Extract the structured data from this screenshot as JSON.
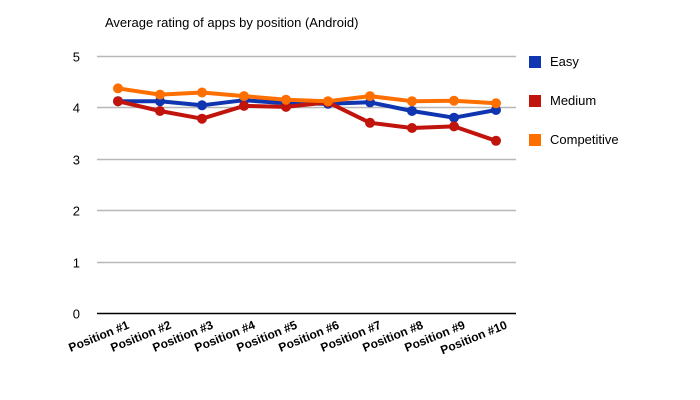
{
  "chart_data": {
    "type": "line",
    "title": "Average rating of apps by position (Android)",
    "xlabel": "",
    "ylabel": "",
    "ylim": [
      0,
      5
    ],
    "yticks": [
      0,
      1,
      2,
      3,
      4,
      5
    ],
    "grid": true,
    "legend_position": "right",
    "categories": [
      "Position #1",
      "Position #2",
      "Position #3",
      "Position #4",
      "Position #5",
      "Position #6",
      "Position #7",
      "Position #8",
      "Position #9",
      "Position #10"
    ],
    "series": [
      {
        "name": "Easy",
        "color": "#1035B0",
        "values": [
          4.12,
          4.12,
          4.04,
          4.14,
          4.08,
          4.07,
          4.1,
          3.93,
          3.8,
          3.95
        ]
      },
      {
        "name": "Medium",
        "color": "#C0140C",
        "values": [
          4.12,
          3.93,
          3.78,
          4.03,
          4.01,
          4.1,
          3.7,
          3.6,
          3.63,
          3.35
        ]
      },
      {
        "name": "Competitive",
        "color": "#FF6F00",
        "values": [
          4.37,
          4.25,
          4.29,
          4.22,
          4.15,
          4.12,
          4.22,
          4.12,
          4.13,
          4.08
        ]
      }
    ]
  }
}
